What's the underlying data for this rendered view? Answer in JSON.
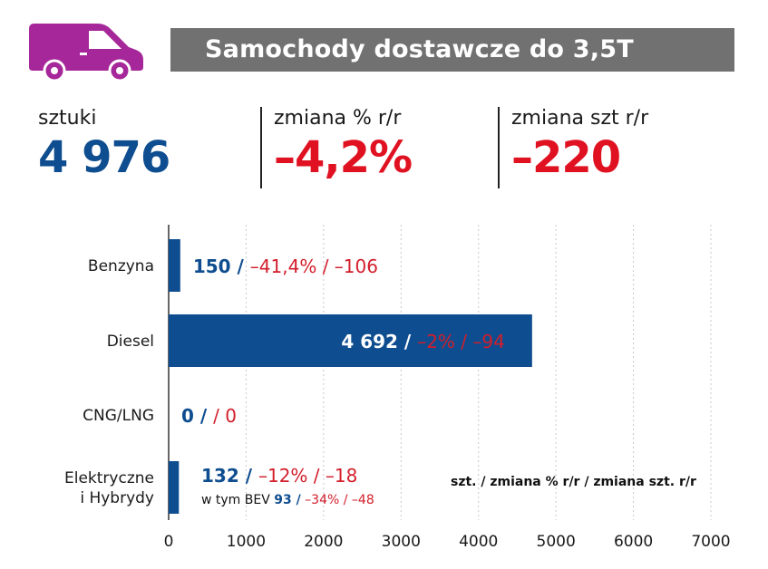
{
  "title": "Samochody dostawcze do 3,5T",
  "colors": {
    "accent_blue": "#0e4d8f",
    "accent_red": "#e01222",
    "title_bg": "#717171",
    "van": "#a6279a"
  },
  "icon": "delivery-van-icon",
  "kpis": [
    {
      "label": "sztuki",
      "value": "4 976"
    },
    {
      "label": "zmiana % r/r",
      "value": "–4,2%"
    },
    {
      "label": "zmiana szt r/r",
      "value": "–220"
    }
  ],
  "legend": {
    "bold": "szt.",
    "rest": " / zmiana % r/r / zmiana szt. r/r"
  },
  "chart_data": {
    "type": "bar",
    "orientation": "horizontal",
    "categories": [
      "Benzyna",
      "Diesel",
      "CNG/LNG",
      "Elektryczne i Hybrydy"
    ],
    "category_lines": [
      [
        "Benzyna"
      ],
      [
        "Diesel"
      ],
      [
        "CNG/LNG"
      ],
      [
        "Elektryczne",
        "i Hybrydy"
      ]
    ],
    "values": [
      150,
      4692,
      0,
      132
    ],
    "value_labels": [
      "150 /",
      "4 692 /",
      "0 /",
      "132 /"
    ],
    "change_labels": [
      "–41,4% / –106",
      "–2% / –94",
      "/ 0",
      "–12% / –18"
    ],
    "sub_annotation": {
      "prefix": "w tym BEV ",
      "value": "93 /",
      "change": " –34% / –48"
    },
    "xlim": [
      0,
      7000
    ],
    "xticks": [
      0,
      1000,
      2000,
      3000,
      4000,
      5000,
      6000,
      7000
    ],
    "xtick_labels": [
      "0",
      "1000",
      "2000",
      "3000",
      "4000",
      "5000",
      "6000",
      "7000"
    ],
    "bar_color": "#0e4d8f",
    "grid": "vertical-dashed"
  }
}
